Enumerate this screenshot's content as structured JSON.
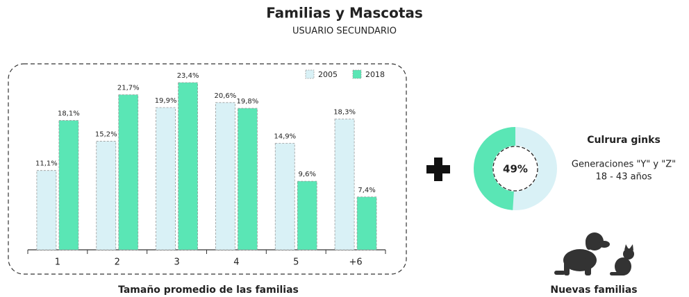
{
  "header": {
    "title": "Familias y Mascotas",
    "subtitle": "USUARIO SECUNDARIO"
  },
  "chart_data": [
    {
      "type": "bar",
      "xlabel": "Tamaño promedio de las familias",
      "categories": [
        "1",
        "2",
        "3",
        "4",
        "5",
        "+6"
      ],
      "legend": "top-right",
      "series": [
        {
          "name": "2005",
          "color": "#d9f1f6",
          "values": [
            11.1,
            15.2,
            19.9,
            20.6,
            14.9,
            18.3
          ],
          "value_labels": [
            "11,1%",
            "15,2%",
            "19,9%",
            "20,6%",
            "14,9%",
            "18,3%"
          ]
        },
        {
          "name": "2018",
          "color": "#5ae6b5",
          "values": [
            18.1,
            21.7,
            23.4,
            19.8,
            9.6,
            7.4
          ],
          "value_labels": [
            "18,1%",
            "21,7%",
            "23,4%",
            "19,8%",
            "9,6%",
            "7,4%"
          ]
        }
      ]
    },
    {
      "type": "pie",
      "values": [
        49
      ],
      "value_labels": [
        "49%"
      ],
      "color": "#5ae6b5",
      "rest_color": "#d9f1f6"
    }
  ],
  "panel": {
    "title": "Culrura ginks",
    "lines": [
      "Generaciones \"Y\" y \"Z\"",
      "18 - 43 años"
    ],
    "caption": "Nuevas familias"
  }
}
